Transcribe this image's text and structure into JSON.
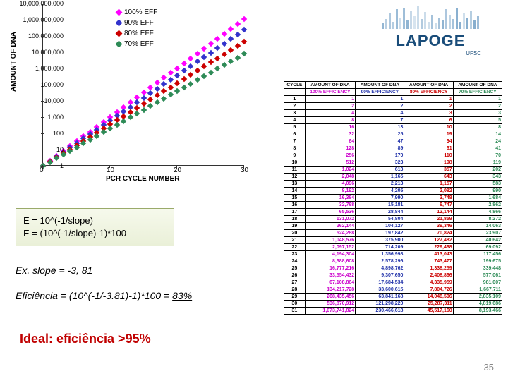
{
  "chart": {
    "ylabel": "AMOUNT OF DNA",
    "xlabel": "PCR CYCLE NUMBER",
    "yticks": [
      "1",
      "10",
      "100",
      "1,000",
      "10,000",
      "100,000",
      "1,000,000",
      "10,000,000",
      "100,000,000",
      "1,000,000,000",
      "10,000,000,000"
    ],
    "xticks": [
      "0",
      "10",
      "20",
      "30"
    ],
    "legend": [
      {
        "label": "100% EFF",
        "color": "#ff00ff"
      },
      {
        "label": "90% EFF",
        "color": "#3333cc"
      },
      {
        "label": "80% EFF",
        "color": "#cc0000"
      },
      {
        "label": "70% EFF",
        "color": "#2e8b57"
      }
    ],
    "series": [
      {
        "color": "#ff00ff",
        "slope": 0.301
      },
      {
        "color": "#3333cc",
        "slope": 0.279
      },
      {
        "color": "#cc0000",
        "slope": 0.255
      },
      {
        "color": "#2e8b57",
        "slope": 0.23
      }
    ],
    "plot_bg": "#ffffff"
  },
  "logo": {
    "text": "LAPOGE",
    "sub": "UFSC"
  },
  "table": {
    "headers": [
      "CYCLE",
      "AMOUNT OF DNA",
      "AMOUNT OF DNA",
      "AMOUNT OF DNA",
      "AMOUNT OF DNA"
    ],
    "subheaders": [
      "",
      "100% EFFICIENCY",
      "90% EFFICIENCY",
      "80% EFFICIENCY",
      "70% EFFICIENCY"
    ],
    "subheader_colors": [
      "#000",
      "#cc00cc",
      "#2233aa",
      "#cc0000",
      "#2e8b57"
    ],
    "rows": [
      [
        "1",
        "1",
        "1",
        "1",
        "1"
      ],
      [
        "2",
        "2",
        "2",
        "2",
        "2"
      ],
      [
        "3",
        "4",
        "4",
        "3",
        "3"
      ],
      [
        "4",
        "8",
        "7",
        "6",
        "5"
      ],
      [
        "5",
        "16",
        "13",
        "10",
        "8"
      ],
      [
        "6",
        "32",
        "25",
        "19",
        "14"
      ],
      [
        "7",
        "64",
        "47",
        "34",
        "24"
      ],
      [
        "8",
        "128",
        "89",
        "61",
        "41"
      ],
      [
        "9",
        "256",
        "170",
        "110",
        "70"
      ],
      [
        "10",
        "512",
        "323",
        "198",
        "119"
      ],
      [
        "11",
        "1,024",
        "613",
        "357",
        "202"
      ],
      [
        "12",
        "2,048",
        "1,165",
        "643",
        "343"
      ],
      [
        "13",
        "4,096",
        "2,213",
        "1,157",
        "583"
      ],
      [
        "14",
        "8,192",
        "4,205",
        "2,082",
        "990"
      ],
      [
        "15",
        "16,384",
        "7,990",
        "3,748",
        "1,684"
      ],
      [
        "16",
        "32,768",
        "15,181",
        "6,747",
        "2,862"
      ],
      [
        "17",
        "65,536",
        "28,844",
        "12,144",
        "4,866"
      ],
      [
        "18",
        "131,072",
        "54,804",
        "21,859",
        "8,272"
      ],
      [
        "19",
        "262,144",
        "104,127",
        "39,346",
        "14,063"
      ],
      [
        "20",
        "524,288",
        "197,842",
        "70,824",
        "23,907"
      ],
      [
        "21",
        "1,048,576",
        "375,900",
        "127,482",
        "40,642"
      ],
      [
        "22",
        "2,097,152",
        "714,209",
        "229,468",
        "69,092"
      ],
      [
        "23",
        "4,194,304",
        "1,356,998",
        "413,043",
        "117,456"
      ],
      [
        "24",
        "8,388,608",
        "2,578,296",
        "743,477",
        "199,675"
      ],
      [
        "25",
        "16,777,216",
        "4,898,762",
        "1,338,259",
        "339,448"
      ],
      [
        "26",
        "33,554,432",
        "9,307,650",
        "2,408,866",
        "577,061"
      ],
      [
        "27",
        "67,108,864",
        "17,684,534",
        "4,335,959",
        "981,007"
      ],
      [
        "28",
        "134,217,728",
        "33,600,615",
        "7,804,726",
        "1,667,711"
      ],
      [
        "29",
        "268,435,456",
        "63,841,168",
        "14,048,506",
        "2,835,109"
      ],
      [
        "30",
        "536,870,912",
        "121,298,220",
        "25,287,311",
        "4,819,686"
      ],
      [
        "31",
        "1,073,741,824",
        "230,466,618",
        "45,517,160",
        "8,193,466"
      ]
    ]
  },
  "formula": {
    "line1": "E = 10^(-1/slope)",
    "line2": "E = (10^(-1/slope)-1)*100"
  },
  "example": {
    "line1": "Ex. slope = -3, 81",
    "line2": "Eficiência = (10^(-1/-3.81)-1)*100 = ",
    "result": "83%"
  },
  "ideal": "Ideal: eficiência >95%",
  "page": "35"
}
